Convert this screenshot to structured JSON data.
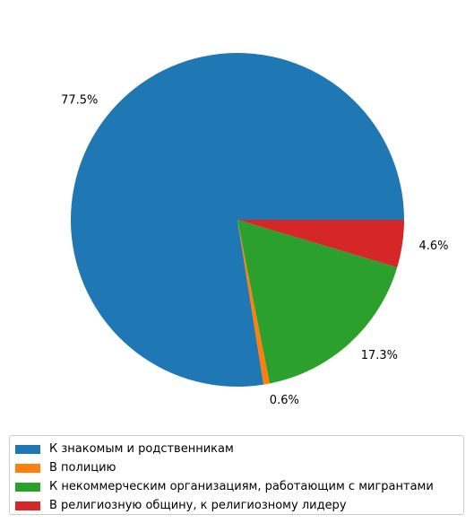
{
  "chart_data": {
    "type": "pie",
    "start_angle_deg": 0,
    "direction": "counterclockwise",
    "slices": [
      {
        "label": "К знакомым и родственникам",
        "value": 77.5,
        "display": "77.5%",
        "color": "#1f77b4"
      },
      {
        "label": "В полицию",
        "value": 0.6,
        "display": "0.6%",
        "color": "#ff7f0e"
      },
      {
        "label": "К некоммерческим организациям, работающим с мигрантами",
        "value": 17.3,
        "display": "17.3%",
        "color": "#2ca02c"
      },
      {
        "label": "В религиозную общину, к религиозному лидеру",
        "value": 4.6,
        "display": "4.6%",
        "color": "#d62728"
      }
    ],
    "legend_position": "bottom"
  }
}
